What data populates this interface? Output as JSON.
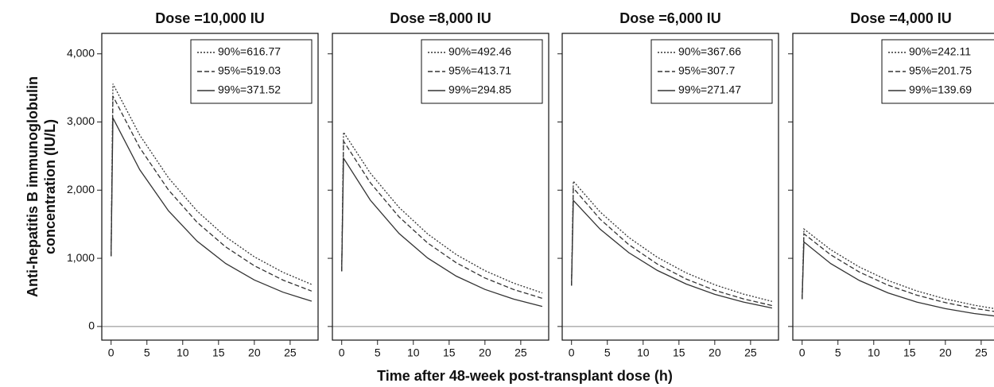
{
  "shared": {
    "ylabel": [
      "Anti-hepatitis B immunoglobulin",
      "concentration (IU/L)"
    ],
    "xlabel": "Time after 48-week post-transplant dose (h)"
  },
  "chart_data": [
    {
      "type": "line",
      "title": "Dose =10,000 IU",
      "legend": "upper right",
      "hline": 0,
      "show_ytick_labels": true,
      "xlim": [
        -1.3,
        28.9
      ],
      "xticks": [
        0,
        5,
        10,
        15,
        20,
        25
      ],
      "ylim": [
        -200,
        4300
      ],
      "yticks": [
        0,
        {
          "value": 1000,
          "label": "1,000"
        },
        {
          "value": 2000,
          "label": "2,000"
        },
        {
          "value": 3000,
          "label": "3,000"
        },
        {
          "value": 4000,
          "label": "4,000"
        }
      ],
      "x": [
        0,
        0.25,
        4,
        8,
        12,
        16,
        20,
        24,
        28
      ],
      "series": [
        {
          "name": "90%=616.77",
          "color": "#333333",
          "dash": "dotted",
          "values": [
            1030,
            3560,
            2809,
            2182,
            1695,
            1316,
            1022,
            794,
            616.77
          ]
        },
        {
          "name": "95%=519.03",
          "color": "#333333",
          "dash": "dashed",
          "values": [
            1030,
            3380,
            2624,
            2003,
            1529,
            1167,
            891,
            680,
            519.03
          ]
        },
        {
          "name": "99%=371.52",
          "color": "#333333",
          "dash": "solid",
          "values": [
            1030,
            3060,
            2301,
            1698,
            1253,
            924,
            682,
            503,
            371.52
          ]
        }
      ]
    },
    {
      "type": "line",
      "title": "Dose =8,000 IU",
      "legend": "upper right",
      "hline": 0,
      "show_ytick_labels": false,
      "xlim": [
        -1.3,
        28.9
      ],
      "xticks": [
        0,
        5,
        10,
        15,
        20,
        25
      ],
      "ylim": [
        -200,
        4300
      ],
      "yticks": [
        0,
        1000,
        2000,
        3000,
        4000
      ],
      "x": [
        0,
        0.25,
        4,
        8,
        12,
        16,
        20,
        24,
        28
      ],
      "series": [
        {
          "name": "90%=492.46",
          "color": "#333333",
          "dash": "dotted",
          "values": [
            810,
            2850,
            2249,
            1747,
            1357,
            1054,
            819,
            636,
            492.46
          ]
        },
        {
          "name": "95%=413.71",
          "color": "#333333",
          "dash": "dashed",
          "values": [
            810,
            2720,
            2109,
            1608,
            1225,
            934,
            712,
            543,
            413.71
          ]
        },
        {
          "name": "99%=294.85",
          "color": "#333333",
          "dash": "solid",
          "values": [
            810,
            2470,
            1853,
            1364,
            1004,
            739,
            544,
            401,
            294.85
          ]
        }
      ]
    },
    {
      "type": "line",
      "title": "Dose =6,000 IU",
      "legend": "upper right",
      "hline": 0,
      "show_ytick_labels": false,
      "xlim": [
        -1.3,
        28.9
      ],
      "xticks": [
        0,
        5,
        10,
        15,
        20,
        25
      ],
      "ylim": [
        -200,
        4300
      ],
      "yticks": [
        0,
        1000,
        2000,
        3000,
        4000
      ],
      "x": [
        0,
        0.25,
        4,
        8,
        12,
        16,
        20,
        24,
        28
      ],
      "series": [
        {
          "name": "90%=367.66",
          "color": "#333333",
          "dash": "dotted",
          "values": [
            600,
            2130,
            1681,
            1305,
            1014,
            787,
            612,
            475,
            367.66
          ]
        },
        {
          "name": "95%=307.7",
          "color": "#333333",
          "dash": "dashed",
          "values": [
            600,
            2030,
            1574,
            1200,
            914,
            697,
            531,
            405,
            307.7
          ]
        },
        {
          "name": "99%=271.47",
          "color": "#333333",
          "dash": "solid",
          "values": [
            600,
            1850,
            1427,
            1082,
            821,
            623,
            472,
            358,
            271.47
          ]
        }
      ]
    },
    {
      "type": "line",
      "title": "Dose =4,000 IU",
      "legend": "upper right",
      "hline": 0,
      "show_ytick_labels": false,
      "xlim": [
        -1.3,
        28.9
      ],
      "xticks": [
        0,
        5,
        10,
        15,
        20,
        25
      ],
      "ylim": [
        -200,
        4300
      ],
      "yticks": [
        0,
        1000,
        2000,
        3000,
        4000
      ],
      "x": [
        0,
        0.25,
        4,
        8,
        12,
        16,
        20,
        24,
        28
      ],
      "series": [
        {
          "name": "90%=242.11",
          "color": "#333333",
          "dash": "dotted",
          "values": [
            400,
            1430,
            1125,
            871,
            674,
            522,
            404,
            313,
            242.11
          ]
        },
        {
          "name": "95%=201.75",
          "color": "#333333",
          "dash": "dashed",
          "values": [
            400,
            1360,
            1051,
            798,
            606,
            460,
            350,
            266,
            201.75
          ]
        },
        {
          "name": "99%=139.69",
          "color": "#333333",
          "dash": "solid",
          "values": [
            400,
            1240,
            923,
            674,
            492,
            359,
            262,
            191,
            139.69
          ]
        }
      ]
    }
  ]
}
